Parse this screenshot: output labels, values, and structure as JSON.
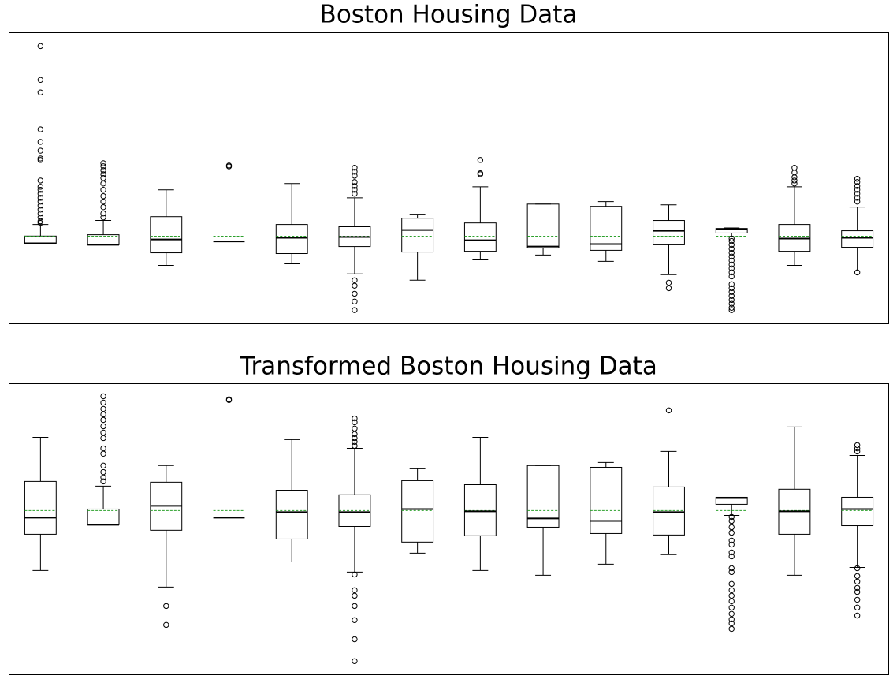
{
  "chart_data": [
    {
      "type": "box",
      "title": "Boston Housing Data",
      "ylim": [
        -4.6,
        10.7
      ],
      "mean_color": "#2ca02c",
      "boxes": [
        {
          "whislo": -0.41,
          "q1": -0.41,
          "med": -0.37,
          "q3": 0.01,
          "whishi": 0.62,
          "mean": 0,
          "fliers": [
            10.0,
            8.22,
            7.56,
            5.62,
            4.96,
            4.5,
            4.09,
            4.01,
            2.93,
            2.6,
            2.44,
            2.23,
            2.02,
            1.82,
            1.61,
            1.4,
            1.2,
            0.99,
            0.79,
            0.7
          ]
        },
        {
          "whislo": -0.45,
          "q1": -0.45,
          "med": -0.45,
          "q3": 0.08,
          "whishi": 0.83,
          "mean": 0,
          "fliers": [
            3.84,
            3.68,
            3.47,
            3.26,
            3.06,
            2.77,
            2.44,
            2.11,
            1.82,
            1.53,
            1.2,
            0.99
          ]
        },
        {
          "whislo": -1.53,
          "q1": -0.87,
          "med": -0.17,
          "q3": 1.03,
          "whishi": 2.44,
          "mean": 0,
          "fliers": []
        },
        {
          "whislo": -0.27,
          "q1": -0.27,
          "med": -0.27,
          "q3": -0.27,
          "whishi": -0.27,
          "mean": 0,
          "fliers": [
            3.67,
            3.72
          ]
        },
        {
          "whislo": -1.45,
          "q1": -0.91,
          "med": -0.08,
          "q3": 0.62,
          "whishi": 2.77,
          "mean": 0,
          "fliers": []
        },
        {
          "whislo": -1.98,
          "q1": -0.54,
          "med": -0.04,
          "q3": 0.5,
          "whishi": 2.02,
          "mean": 0,
          "fliers": [
            3.6,
            3.39,
            3.18,
            2.85,
            2.64,
            2.44,
            2.23,
            -2.31,
            -2.6,
            -3.02,
            -3.43,
            -3.88
          ]
        },
        {
          "whislo": -2.31,
          "q1": -0.83,
          "med": 0.33,
          "q3": 0.95,
          "whishi": 1.16,
          "mean": 0,
          "fliers": []
        },
        {
          "whislo": -1.24,
          "q1": -0.79,
          "med": -0.21,
          "q3": 0.7,
          "whishi": 2.6,
          "mean": 0,
          "fliers": [
            4.01,
            3.31,
            3.26
          ]
        },
        {
          "whislo": -0.99,
          "q1": -0.62,
          "med": -0.54,
          "q3": 1.69,
          "whishi": 1.69,
          "mean": 0,
          "fliers": []
        },
        {
          "whislo": -1.32,
          "q1": -0.74,
          "med": -0.41,
          "q3": 1.57,
          "whishi": 1.82,
          "mean": 0,
          "fliers": []
        },
        {
          "whislo": -2.02,
          "q1": -0.45,
          "med": 0.29,
          "q3": 0.83,
          "whishi": 1.65,
          "mean": 0,
          "fliers": [
            -2.44,
            -2.73
          ]
        },
        {
          "whislo": -0.04,
          "q1": 0.17,
          "med": 0.37,
          "q3": 0.41,
          "whishi": 0.44,
          "mean": 0,
          "fliers": [
            -0.12,
            -0.25,
            -0.45,
            -0.66,
            -0.87,
            -1.07,
            -1.28,
            -1.49,
            -1.69,
            -1.9,
            -2.11,
            -2.52,
            -2.73,
            -2.93,
            -3.14,
            -3.35,
            -3.55,
            -3.76,
            -3.88
          ]
        },
        {
          "whislo": -1.53,
          "q1": -0.79,
          "med": -0.12,
          "q3": 0.62,
          "whishi": 2.6,
          "mean": 0,
          "fliers": [
            3.6,
            3.35,
            3.1,
            2.93,
            2.77
          ]
        },
        {
          "whislo": -1.82,
          "q1": -0.58,
          "med": -0.08,
          "q3": 0.29,
          "whishi": 1.53,
          "mean": 0,
          "fliers": [
            3.02,
            2.85,
            2.64,
            2.44,
            2.23,
            2.02,
            1.82,
            -1.9
          ]
        }
      ]
    },
    {
      "type": "box",
      "title": "Transformed Boston Housing Data",
      "ylim": [
        -8.6,
        6.65
      ],
      "mean_color": "#2ca02c",
      "boxes": [
        {
          "whislo": -3.14,
          "q1": -1.24,
          "med": -0.37,
          "q3": 1.53,
          "whishi": 3.84,
          "mean": 0,
          "fliers": []
        },
        {
          "whislo": -0.74,
          "q1": -0.74,
          "med": -0.74,
          "q3": 0.08,
          "whishi": 1.28,
          "mean": 0,
          "fliers": [
            5.99,
            5.66,
            5.33,
            5.04,
            4.75,
            4.42,
            4.09,
            3.8,
            3.26,
            2.98,
            2.36,
            2.02,
            1.74,
            1.53
          ]
        },
        {
          "whislo": -4.01,
          "q1": -1.03,
          "med": 0.25,
          "q3": 1.49,
          "whishi": 2.36,
          "mean": 0,
          "fliers": [
            -5.0,
            -5.99
          ]
        },
        {
          "whislo": -0.37,
          "q1": -0.37,
          "med": -0.37,
          "q3": -0.37,
          "whishi": -0.37,
          "mean": 0,
          "fliers": [
            5.79,
            5.83
          ]
        },
        {
          "whislo": -2.69,
          "q1": -1.49,
          "med": -0.08,
          "q3": 1.07,
          "whishi": 3.72,
          "mean": 0,
          "fliers": []
        },
        {
          "whislo": -3.22,
          "q1": -0.83,
          "med": -0.08,
          "q3": 0.83,
          "whishi": 3.26,
          "mean": 0,
          "fliers": [
            4.83,
            4.63,
            4.3,
            4.01,
            3.8,
            3.6,
            3.39,
            -3.35,
            -4.17,
            -4.46,
            -5.0,
            -5.74,
            -6.74,
            -7.89
          ]
        },
        {
          "whislo": -2.23,
          "q1": -1.65,
          "med": 0.08,
          "q3": 1.57,
          "whishi": 2.19,
          "mean": 0,
          "fliers": []
        },
        {
          "whislo": -3.14,
          "q1": -1.32,
          "med": -0.04,
          "q3": 1.36,
          "whishi": 3.84,
          "mean": 0,
          "fliers": []
        },
        {
          "whislo": -3.39,
          "q1": -0.87,
          "med": -0.41,
          "q3": 2.36,
          "whishi": 2.36,
          "mean": 0,
          "fliers": []
        },
        {
          "whislo": -2.81,
          "q1": -1.2,
          "med": -0.54,
          "q3": 2.27,
          "whishi": 2.52,
          "mean": 0,
          "fliers": []
        },
        {
          "whislo": -2.31,
          "q1": -1.28,
          "med": -0.08,
          "q3": 1.24,
          "whishi": 3.1,
          "mean": 0,
          "fliers": [
            5.25
          ]
        },
        {
          "whislo": -0.25,
          "q1": 0.33,
          "med": 0.66,
          "q3": 0.7,
          "whishi": 0.7,
          "mean": 0,
          "fliers": [
            -0.33,
            -0.54,
            -0.87,
            -1.16,
            -1.57,
            -1.78,
            -2.19,
            -2.4,
            -3.02,
            -3.22,
            -3.84,
            -4.17,
            -4.46,
            -4.75,
            -5.08,
            -5.41,
            -5.7,
            -5.91,
            -6.2
          ]
        },
        {
          "whislo": -3.39,
          "q1": -1.24,
          "med": -0.04,
          "q3": 1.12,
          "whishi": 4.38,
          "mean": 0,
          "fliers": []
        },
        {
          "whislo": -2.98,
          "q1": -0.79,
          "med": 0.08,
          "q3": 0.7,
          "whishi": 2.89,
          "mean": 0,
          "fliers": [
            3.43,
            3.26,
            3.1,
            -3.02,
            -3.43,
            -3.72,
            -4.05,
            -4.26,
            -4.67,
            -5.08,
            -5.5
          ]
        }
      ]
    }
  ]
}
